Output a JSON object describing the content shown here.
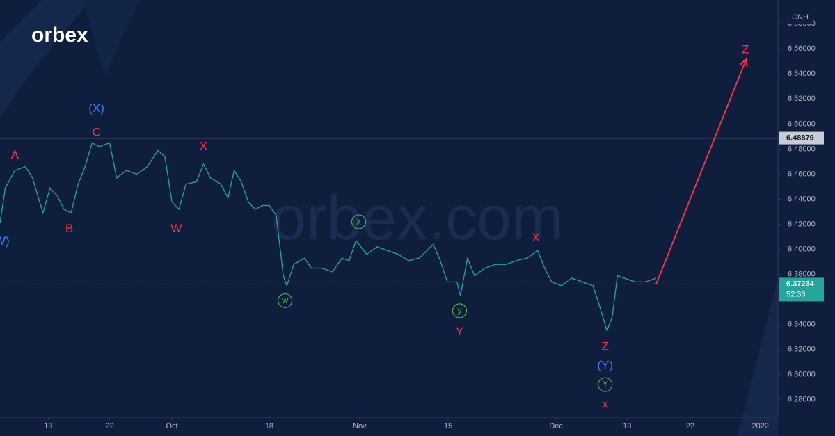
{
  "chart_data": {
    "type": "line",
    "logo": "orbex",
    "watermark": "orbex.com",
    "symbol": "CNH",
    "xlim": [
      0,
      88.7
    ],
    "ylim": [
      6.266,
      6.599
    ],
    "xticks": [
      {
        "value": 5.5,
        "label": "13"
      },
      {
        "value": 12.5,
        "label": "22"
      },
      {
        "value": 19.6,
        "label": "Oct"
      },
      {
        "value": 30.7,
        "label": "18"
      },
      {
        "value": 41.0,
        "label": "Nov"
      },
      {
        "value": 51.1,
        "label": "15"
      },
      {
        "value": 63.4,
        "label": "Dec"
      },
      {
        "value": 71.5,
        "label": "13"
      },
      {
        "value": 78.7,
        "label": "22"
      },
      {
        "value": 86.7,
        "label": "2022"
      }
    ],
    "yticks": [
      {
        "value": 6.28,
        "label": "6.28000"
      },
      {
        "value": 6.3,
        "label": "6.30000"
      },
      {
        "value": 6.32,
        "label": "6.32000"
      },
      {
        "value": 6.34,
        "label": "6.34000"
      },
      {
        "value": 6.36,
        "label": "6.36000"
      },
      {
        "value": 6.38,
        "label": "6.38000"
      },
      {
        "value": 6.4,
        "label": "6.40000"
      },
      {
        "value": 6.42,
        "label": "6.42000"
      },
      {
        "value": 6.44,
        "label": "6.44000"
      },
      {
        "value": 6.46,
        "label": "6.46000"
      },
      {
        "value": 6.48,
        "label": "6.48000"
      },
      {
        "value": 6.5,
        "label": "6.50000"
      },
      {
        "value": 6.52,
        "label": "6.52000"
      },
      {
        "value": 6.54,
        "label": "6.54000"
      },
      {
        "value": 6.56,
        "label": "6.56000"
      },
      {
        "value": 6.58,
        "label": "6.58000"
      }
    ],
    "series": [
      {
        "color": "#26a69a",
        "x": [
          0,
          0.6,
          1.7,
          2.9,
          3.7,
          4.9,
          5.7,
          6.5,
          7.3,
          8.1,
          8.9,
          9.7,
          10.5,
          11.3,
          12.5,
          13.3,
          14.4,
          15.6,
          16.8,
          18.0,
          18.8,
          19.6,
          20.4,
          21.2,
          22.4,
          23.2,
          24.0,
          25.2,
          26.0,
          26.7,
          27.5,
          28.3,
          29.1,
          29.9,
          30.7,
          31.5,
          32.3,
          32.7,
          33.5,
          34.7,
          35.5,
          36.7,
          37.9,
          39.0,
          39.8,
          40.6,
          41.8,
          43.0,
          44.2,
          45.4,
          46.6,
          47.8,
          49.4,
          50.2,
          51.0,
          52.1,
          52.5,
          53.3,
          54.1,
          55.3,
          56.5,
          57.7,
          58.9,
          60.1,
          61.3,
          62.1,
          62.9,
          64.0,
          65.2,
          66.4,
          67.6,
          68.4,
          69.2,
          69.8,
          70.4,
          71.2,
          72.4,
          73.6,
          74.8
        ],
        "values": [
          6.421,
          6.449,
          6.463,
          6.466,
          6.457,
          6.429,
          6.449,
          6.443,
          6.432,
          6.429,
          6.452,
          6.466,
          6.485,
          6.482,
          6.485,
          6.457,
          6.463,
          6.46,
          6.466,
          6.479,
          6.474,
          6.438,
          6.432,
          6.452,
          6.454,
          6.468,
          6.457,
          6.452,
          6.441,
          6.463,
          6.454,
          6.438,
          6.432,
          6.435,
          6.435,
          6.427,
          6.379,
          6.371,
          6.388,
          6.393,
          6.385,
          6.385,
          6.382,
          6.393,
          6.391,
          6.407,
          6.396,
          6.402,
          6.399,
          6.396,
          6.391,
          6.393,
          6.404,
          6.391,
          6.374,
          6.374,
          6.363,
          6.393,
          6.379,
          6.385,
          6.388,
          6.388,
          6.391,
          6.393,
          6.399,
          6.385,
          6.374,
          6.371,
          6.377,
          6.374,
          6.371,
          6.354,
          6.335,
          6.346,
          6.379,
          6.377,
          6.374,
          6.374,
          6.377
        ]
      },
      {
        "color": "#f23645",
        "x": [
          74.8,
          85.1
        ],
        "values": [
          6.372,
          6.552
        ]
      }
    ],
    "price_lines": [
      6.48879,
      6.37234
    ],
    "countdown": "52:36",
    "annotations": [
      {
        "text": "(W)",
        "x": 0.0,
        "y": 6.406,
        "color": "#3d7bff"
      },
      {
        "text": "A",
        "x": 1.7,
        "y": 6.475,
        "color": "#f23645"
      },
      {
        "text": "B",
        "x": 7.9,
        "y": 6.416,
        "color": "#f23645"
      },
      {
        "text": "C",
        "x": 11.0,
        "y": 6.493,
        "color": "#f23645"
      },
      {
        "text": "(X)",
        "x": 11.0,
        "y": 6.512,
        "color": "#3d7bff"
      },
      {
        "text": "W",
        "x": 20.1,
        "y": 6.416,
        "color": "#f23645"
      },
      {
        "text": "X",
        "x": 23.2,
        "y": 6.482,
        "color": "#f23645"
      },
      {
        "text": "w",
        "x": 32.5,
        "y": 6.359,
        "color": "#4caf50",
        "circled": true
      },
      {
        "text": "x",
        "x": 40.9,
        "y": 6.422,
        "color": "#4caf50",
        "circled": true
      },
      {
        "text": "y",
        "x": 52.4,
        "y": 6.351,
        "color": "#4caf50",
        "circled": true
      },
      {
        "text": "Y",
        "x": 52.4,
        "y": 6.334,
        "color": "#f23645"
      },
      {
        "text": "X",
        "x": 61.1,
        "y": 6.409,
        "color": "#f23645"
      },
      {
        "text": "Z",
        "x": 69.0,
        "y": 6.322,
        "color": "#f23645"
      },
      {
        "text": "(Y)",
        "x": 69.0,
        "y": 6.307,
        "color": "#3d7bff"
      },
      {
        "text": "Y",
        "x": 69.0,
        "y": 6.292,
        "color": "#4caf50",
        "circled": true
      },
      {
        "text": "x",
        "x": 69.0,
        "y": 6.276,
        "color": "#f23645"
      },
      {
        "text": "Z",
        "x": 85.0,
        "y": 6.559,
        "color": "#f23645"
      }
    ]
  }
}
